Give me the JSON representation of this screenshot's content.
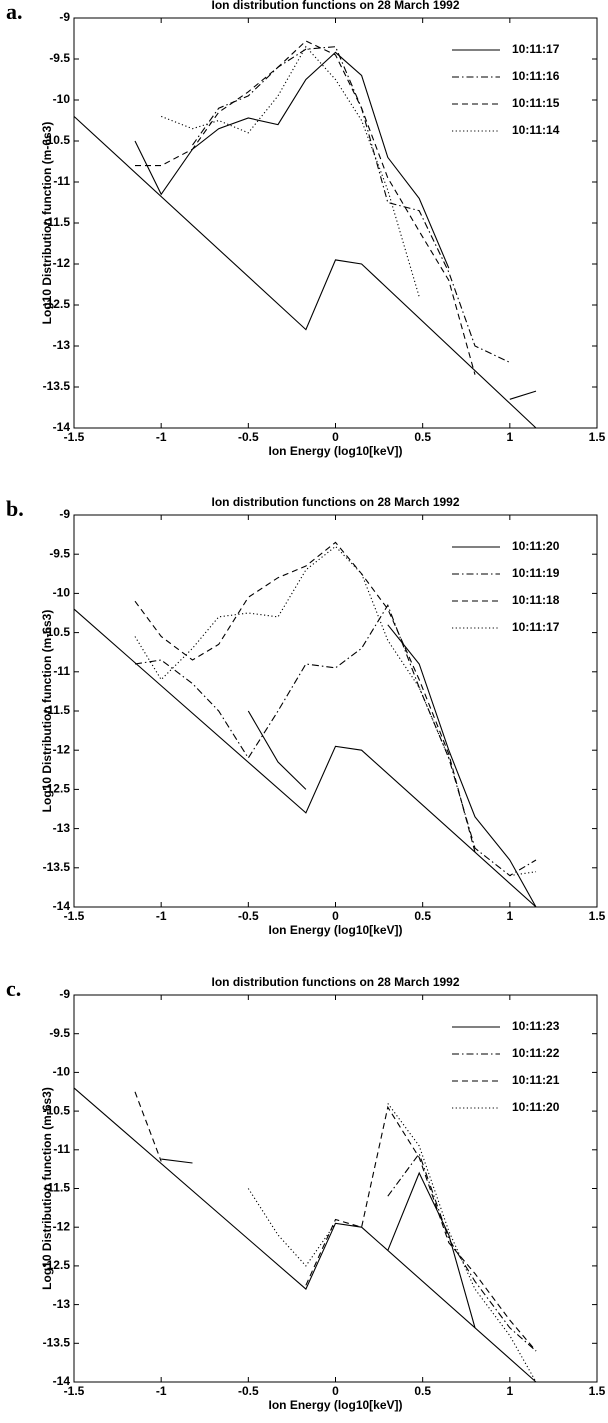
{
  "chart_data": [
    {
      "type": "line",
      "panel_label": "a.",
      "title": "Ion distribution functions on 28 March 1992",
      "xlabel": "Ion Energy (log10[keV])",
      "ylabel": "Log10 Distribution function (m-6s3)",
      "xlim": [
        -1.5,
        1.5
      ],
      "ylim": [
        -14,
        -9
      ],
      "xticks": [
        -1.5,
        -1,
        -0.5,
        0,
        0.5,
        1,
        1.5
      ],
      "yticks": [
        -9,
        -9.5,
        -10,
        -10.5,
        -11,
        -11.5,
        -12,
        -12.5,
        -13,
        -13.5,
        -14
      ],
      "reference": {
        "x": [
          -1.5,
          -0.17,
          0,
          0.15,
          1.15
        ],
        "values": [
          -10.2,
          -12.8,
          -11.95,
          -12,
          -14
        ],
        "color": "#000",
        "style": "solid"
      },
      "series": [
        {
          "name": "10:11:17",
          "color": "#000",
          "style": "solid",
          "x": [
            -1.15,
            -1,
            -0.82,
            -0.67,
            -0.5,
            -0.33,
            -0.17,
            0,
            0.15,
            0.3,
            0.48,
            0.65,
            0.8,
            1,
            1.15
          ],
          "values": [
            -10.5,
            -11.15,
            -10.6,
            -10.35,
            -10.22,
            -10.3,
            -9.75,
            -9.42,
            -9.7,
            -10.7,
            -11.2,
            -12.05,
            null,
            -13.65,
            -13.55
          ]
        },
        {
          "name": "10:11:16",
          "color": "#000",
          "style": "dashdot",
          "x": [
            -0.82,
            -0.67,
            -0.5,
            -0.33,
            -0.17,
            0,
            0.15,
            0.3,
            0.48,
            0.65,
            0.8,
            1
          ],
          "values": [
            -10.55,
            -10.1,
            -9.95,
            -9.6,
            -9.38,
            -9.35,
            -10.1,
            -11.25,
            -11.35,
            -12.1,
            -13,
            -13.2
          ]
        },
        {
          "name": "10:11:15",
          "color": "#000",
          "style": "dashed",
          "x": [
            -1.15,
            -1,
            -0.82,
            -0.67,
            -0.5,
            -0.33,
            -0.17,
            0,
            0.15,
            0.3,
            0.48,
            0.65,
            0.8
          ],
          "values": [
            -10.8,
            -10.8,
            -10.6,
            -10.15,
            -9.9,
            -9.6,
            -9.28,
            -9.45,
            -10.1,
            -10.95,
            -11.6,
            -12.2,
            -13.35
          ]
        },
        {
          "name": "10:11:14",
          "color": "#000",
          "style": "dotted",
          "x": [
            -1,
            -0.82,
            -0.67,
            -0.5,
            -0.33,
            -0.17,
            0,
            0.15,
            0.3,
            0.48
          ],
          "values": [
            -10.2,
            -10.35,
            -10.25,
            -10.4,
            -9.95,
            -9.35,
            -9.75,
            -10.25,
            -11.1,
            -12.4
          ]
        }
      ]
    },
    {
      "type": "line",
      "panel_label": "b.",
      "title": "Ion distribution functions on 28 March 1992",
      "xlabel": "Ion Energy (log10[keV])",
      "ylabel": "Log10 Distribution function (m-6s3)",
      "xlim": [
        -1.5,
        1.5
      ],
      "ylim": [
        -14,
        -9
      ],
      "xticks": [
        -1.5,
        -1,
        -0.5,
        0,
        0.5,
        1,
        1.5
      ],
      "yticks": [
        -9,
        -9.5,
        -10,
        -10.5,
        -11,
        -11.5,
        -12,
        -12.5,
        -13,
        -13.5,
        -14
      ],
      "reference": {
        "x": [
          -1.5,
          -0.17,
          0,
          0.15,
          1.15
        ],
        "values": [
          -10.2,
          -12.8,
          -11.95,
          -12,
          -14
        ],
        "color": "#000",
        "style": "solid"
      },
      "series": [
        {
          "name": "10:11:20",
          "color": "#000",
          "style": "solid",
          "x": [
            -0.5,
            -0.33,
            -0.17,
            0,
            0.3,
            0.48,
            0.65,
            0.8,
            1,
            1.15
          ],
          "values": [
            -11.5,
            -12.15,
            -12.5,
            null,
            -10.4,
            -10.9,
            -12,
            -12.85,
            -13.4,
            -14
          ]
        },
        {
          "name": "10:11:19",
          "color": "#000",
          "style": "dashdot",
          "x": [
            -1.15,
            -1,
            -0.82,
            -0.67,
            -0.5,
            -0.33,
            -0.17,
            0,
            0.15,
            0.3,
            0.48,
            0.65,
            0.8,
            1,
            1.15
          ],
          "values": [
            -10.9,
            -10.85,
            -11.15,
            -11.5,
            -12.1,
            -11.5,
            -10.9,
            -10.95,
            -10.7,
            -10.15,
            -11.2,
            -12.1,
            -13.25,
            -13.6,
            -13.4
          ]
        },
        {
          "name": "10:11:18",
          "color": "#000",
          "style": "dashed",
          "x": [
            -1.15,
            -1,
            -0.82,
            -0.67,
            -0.5,
            -0.33,
            -0.17,
            0,
            0.15,
            0.3,
            0.48,
            0.65,
            0.8
          ],
          "values": [
            -10.1,
            -10.55,
            -10.85,
            -10.65,
            -10.05,
            -9.8,
            -9.65,
            -9.35,
            -9.75,
            -10.2,
            -11.1,
            -12.05,
            -13.3
          ]
        },
        {
          "name": "10:11:17",
          "color": "#000",
          "style": "dotted",
          "x": [
            -1.15,
            -1,
            -0.82,
            -0.67,
            -0.5,
            -0.33,
            -0.17,
            0,
            0.15,
            0.3,
            0.48,
            0.65,
            0.8,
            1,
            1.15
          ],
          "values": [
            -10.55,
            -11.1,
            -10.7,
            -10.3,
            -10.25,
            -10.3,
            -9.7,
            -9.4,
            -9.75,
            -10.6,
            -11.2,
            -12.1,
            null,
            -13.6,
            -13.55
          ]
        }
      ]
    },
    {
      "type": "line",
      "panel_label": "c.",
      "title": "Ion distribution functions on 28 March 1992",
      "xlabel": "Ion Energy (log10[keV])",
      "ylabel": "Log10 Distribution function (m-6s3)",
      "xlim": [
        -1.5,
        1.5
      ],
      "ylim": [
        -14,
        -9
      ],
      "xticks": [
        -1.5,
        -1,
        -0.5,
        0,
        0.5,
        1,
        1.5
      ],
      "yticks": [
        -9,
        -9.5,
        -10,
        -10.5,
        -11,
        -11.5,
        -12,
        -12.5,
        -13,
        -13.5,
        -14
      ],
      "reference": {
        "x": [
          -1.5,
          -0.17,
          0,
          0.15,
          1.15
        ],
        "values": [
          -10.2,
          -12.8,
          -11.95,
          -12,
          -14
        ],
        "color": "#000",
        "style": "solid"
      },
      "series": [
        {
          "name": "10:11:23",
          "color": "#000",
          "style": "solid",
          "x": [
            -1,
            -0.82,
            0,
            0.3,
            0.48,
            0.65,
            0.8
          ],
          "values": [
            -11.12,
            -11.17,
            null,
            -12.3,
            -11.3,
            -12.1,
            -13.3
          ]
        },
        {
          "name": "10:11:22",
          "color": "#000",
          "style": "dashdot",
          "x": [
            0.3,
            0.48,
            0.65,
            0.8,
            1,
            1.15
          ],
          "values": [
            -11.6,
            -11.05,
            -12.15,
            -12.7,
            -13.3,
            -13.6
          ]
        },
        {
          "name": "10:11:21",
          "color": "#000",
          "style": "dashed",
          "x": [
            -1.15,
            -1,
            -0.5,
            -0.17,
            0,
            0.15,
            0.3,
            0.48,
            0.65,
            0.8,
            1,
            1.15
          ],
          "values": [
            -10.25,
            -11.15,
            null,
            -12.75,
            -11.9,
            -12,
            -10.45,
            -11.1,
            -12.2,
            -12.6,
            -13.2,
            -13.6
          ]
        },
        {
          "name": "10:11:20",
          "color": "#000",
          "style": "dotted",
          "x": [
            -0.5,
            -0.33,
            -0.17,
            0,
            0.15,
            0.3,
            0.48,
            0.65,
            0.8,
            1,
            1.15
          ],
          "values": [
            -11.5,
            -12.1,
            -12.5,
            -11.95,
            null,
            -10.4,
            -10.95,
            -12.05,
            -12.8,
            -13.4,
            -14
          ]
        }
      ]
    }
  ]
}
